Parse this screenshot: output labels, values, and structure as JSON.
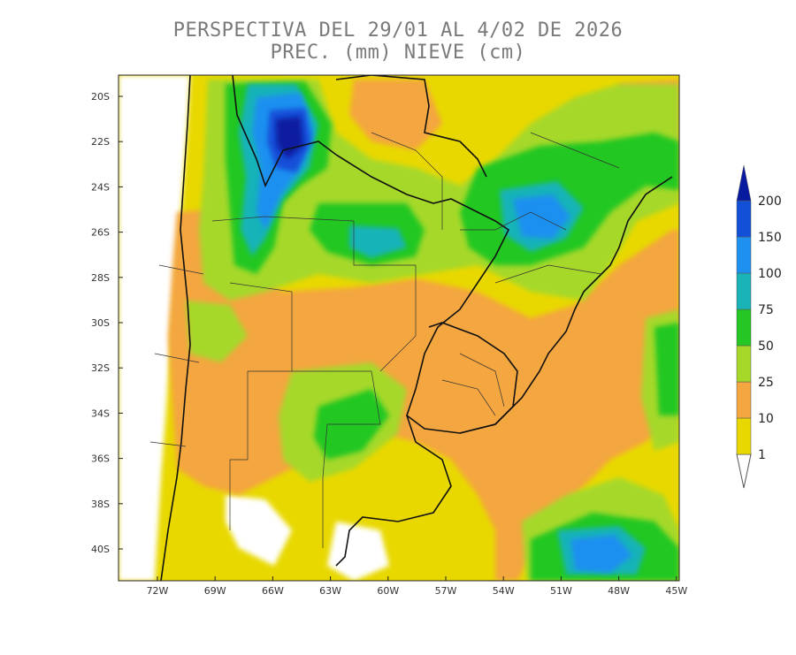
{
  "title": {
    "line1": "PERSPECTIVA DEL 29/01 AL 4/02 DE 2026",
    "line2": "PREC. (mm) NIEVE (cm)"
  },
  "map": {
    "lat_ticks": [
      "20S",
      "22S",
      "24S",
      "26S",
      "28S",
      "30S",
      "32S",
      "34S",
      "36S",
      "38S",
      "40S"
    ],
    "lon_ticks": [
      "72W",
      "69W",
      "66W",
      "63W",
      "60W",
      "57W",
      "54W",
      "51W",
      "48W",
      "45W"
    ]
  },
  "legend": {
    "levels": [
      "1",
      "10",
      "25",
      "50",
      "75",
      "100",
      "150",
      "200"
    ],
    "colors": [
      "#e8d800",
      "#f4a640",
      "#a6d829",
      "#24c724",
      "#19b3b8",
      "#1e90f0",
      "#1250d8",
      "#071aa0"
    ]
  }
}
